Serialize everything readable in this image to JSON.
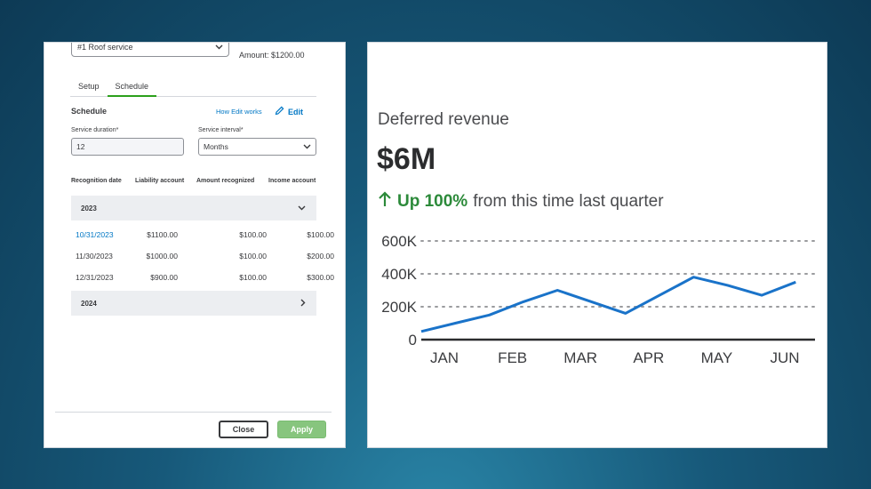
{
  "schedule_panel": {
    "product_select": "#1 Roof service",
    "amount": "Amount: $1200.00",
    "tabs": [
      {
        "label": "Setup",
        "active": false
      },
      {
        "label": "Schedule",
        "active": true
      }
    ],
    "section_title": "Schedule",
    "how_edit_link": "How Edit works",
    "edit_link": "Edit",
    "service_duration": {
      "label": "Service duration*",
      "value": "12"
    },
    "service_interval": {
      "label": "Service interval*",
      "value": "Months"
    },
    "columns": [
      "Recognition date",
      "Liability account",
      "Amount recognized",
      "Income account"
    ],
    "groups": [
      {
        "year": "2023",
        "expanded": true,
        "rows": [
          {
            "date": "10/31/2023",
            "liability": "$1100.00",
            "recognized": "$100.00",
            "income": "$100.00"
          },
          {
            "date": "11/30/2023",
            "liability": "$1000.00",
            "recognized": "$100.00",
            "income": "$200.00"
          },
          {
            "date": "12/31/2023",
            "liability": "$900.00",
            "recognized": "$100.00",
            "income": "$300.00"
          }
        ]
      },
      {
        "year": "2024",
        "expanded": false,
        "rows": []
      }
    ],
    "buttons": {
      "close": "Close",
      "apply": "Apply"
    },
    "colors": {
      "link": "#0077c5",
      "accent": "#2ca01c",
      "apply": "#87c57e"
    }
  },
  "revenue_card": {
    "title": "Deferred revenue",
    "value": "$6M",
    "change_highlight": "Up 100%",
    "change_text": "from this time last quarter",
    "colors": {
      "line": "#1a73c9",
      "positive": "#2c8a3a"
    }
  },
  "chart_data": {
    "type": "line",
    "categories": [
      "JAN",
      "FEB",
      "MAR",
      "APR",
      "MAY",
      "JUN"
    ],
    "x": [
      0,
      0.5,
      1,
      1.5,
      2,
      2.5,
      3,
      3.5,
      4,
      4.5,
      5,
      5.5
    ],
    "series": [
      {
        "values": [
          50000,
          100000,
          150000,
          230000,
          300000,
          230000,
          160000,
          270000,
          380000,
          330000,
          270000,
          350000
        ]
      }
    ],
    "yticks": [
      0,
      200000,
      400000,
      600000
    ],
    "ytick_labels": [
      "0",
      "200K",
      "400K",
      "600K"
    ],
    "ylim": [
      0,
      600000
    ],
    "grid": "dotted horizontal",
    "legend": "none"
  }
}
